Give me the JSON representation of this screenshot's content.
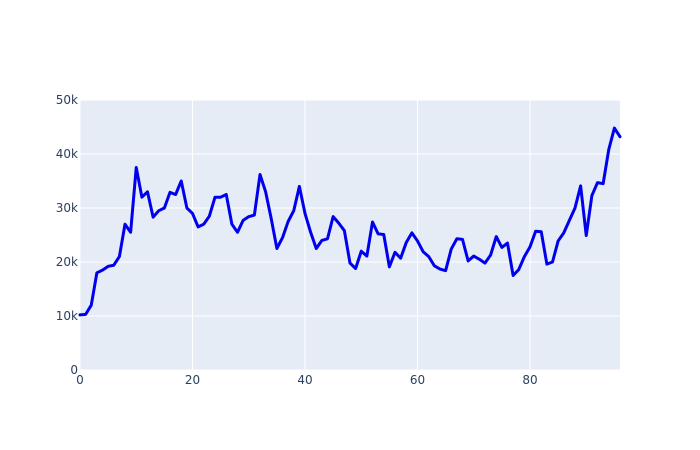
{
  "chart_data": {
    "type": "line",
    "title": "",
    "xlabel": "",
    "ylabel": "",
    "xlim": [
      0,
      96
    ],
    "ylim": [
      0,
      50000
    ],
    "x_ticks": [
      0,
      20,
      40,
      60,
      80
    ],
    "x_tick_labels": [
      "0",
      "20",
      "40",
      "60",
      "80"
    ],
    "y_ticks": [
      0,
      10000,
      20000,
      30000,
      40000,
      50000
    ],
    "y_tick_labels": [
      "0",
      "10k",
      "20k",
      "30k",
      "40k",
      "50k"
    ],
    "grid": true,
    "legend": "none",
    "colors": {
      "plot_bg": "#e5ecf6",
      "grid": "#ffffff",
      "line": "#0000ee",
      "text": "#2a3f5f"
    },
    "series": [
      {
        "x": [
          0,
          1,
          2,
          3,
          4,
          5,
          6,
          7,
          8,
          9,
          10,
          11,
          12,
          13,
          14,
          15,
          16,
          17,
          18,
          19,
          20,
          21,
          22,
          23,
          24,
          25,
          26,
          27,
          28,
          29,
          30,
          31,
          32,
          33,
          34,
          35,
          36,
          37,
          38,
          39,
          40,
          41,
          42,
          43,
          44,
          45,
          46,
          47,
          48,
          49,
          50,
          51,
          52,
          53,
          54,
          55,
          56,
          57,
          58,
          59,
          60,
          61,
          62,
          63,
          64,
          65,
          66,
          67,
          68,
          69,
          70,
          71,
          72,
          73,
          74,
          75,
          76,
          77,
          78,
          79,
          80,
          81,
          82,
          83,
          84,
          85,
          86,
          87,
          88,
          89,
          90,
          91,
          92,
          93,
          94,
          95,
          96
        ],
        "values": [
          10200,
          10300,
          12000,
          18000,
          18500,
          19200,
          19400,
          21000,
          27000,
          25500,
          37500,
          32000,
          33000,
          28300,
          29500,
          30000,
          32900,
          32500,
          35000,
          30000,
          29000,
          26500,
          27000,
          28500,
          32000,
          32000,
          32500,
          27000,
          25500,
          27700,
          28400,
          28700,
          36200,
          33000,
          28000,
          22500,
          24500,
          27500,
          29500,
          34000,
          29000,
          25500,
          22500,
          24000,
          24300,
          28400,
          27200,
          25800,
          19800,
          18800,
          22000,
          21100,
          27400,
          25200,
          25100,
          19100,
          21800,
          20700,
          23600,
          25400,
          23900,
          21900,
          21000,
          19300,
          18700,
          18400,
          22400,
          24300,
          24200,
          20200,
          21100,
          20500,
          19800,
          21300,
          24700,
          22700,
          23500,
          17500,
          18600,
          21000,
          22800,
          25700,
          25600,
          19600,
          20000,
          23900,
          25400,
          27700,
          30000,
          34100,
          24900,
          32300,
          34700,
          34500,
          40800,
          44800,
          43200
        ]
      }
    ]
  }
}
